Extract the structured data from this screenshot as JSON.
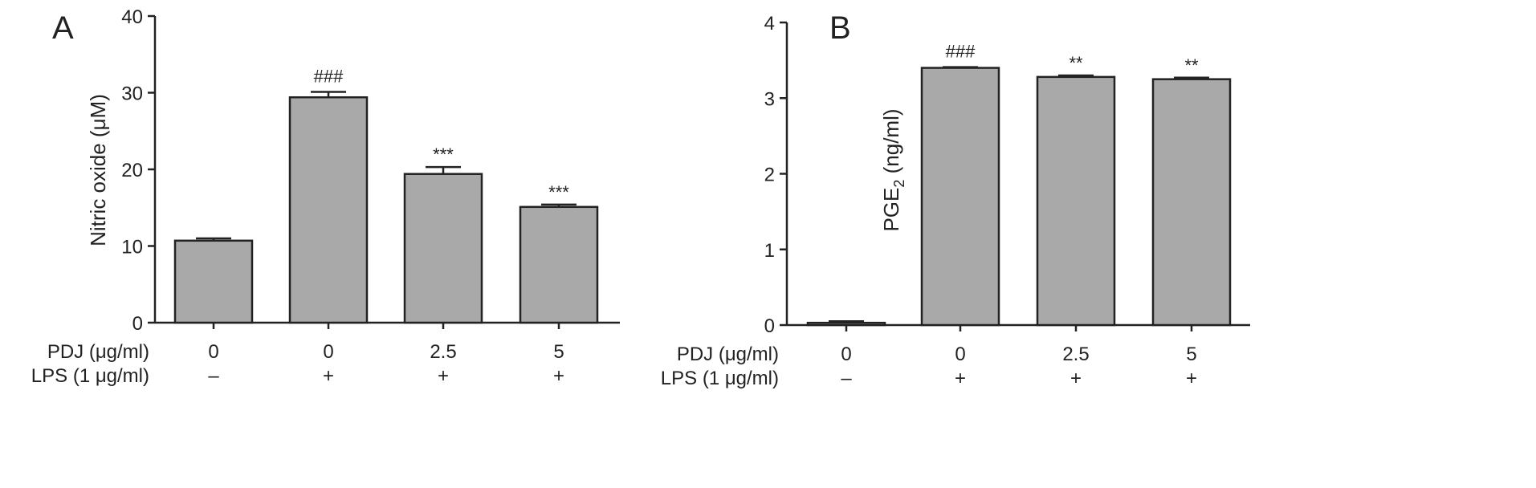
{
  "colors": {
    "bar": "#a9a9a9",
    "axis": "#222222",
    "text": "#222222"
  },
  "chart_data": [
    {
      "type": "bar",
      "panel_label": "A",
      "title": "",
      "xlabel": "",
      "ylabel": "Nitric oxide (μM)",
      "ylim": [
        0,
        40
      ],
      "yticks": [
        0,
        10,
        20,
        30,
        40
      ],
      "categories": [
        "0",
        "0",
        "2.5",
        "5"
      ],
      "values": [
        10.7,
        29.4,
        19.4,
        15.1
      ],
      "errors": [
        0.3,
        0.7,
        0.9,
        0.3
      ],
      "significance": [
        "",
        "###",
        "***",
        "***"
      ],
      "grid": false,
      "treatment_rows": [
        {
          "label": "PDJ (μg/ml)",
          "values": [
            "0",
            "0",
            "2.5",
            "5"
          ]
        },
        {
          "label": "LPS (1 μg/ml)",
          "values": [
            "–",
            "+",
            "+",
            "+"
          ]
        }
      ]
    },
    {
      "type": "bar",
      "panel_label": "B",
      "title": "",
      "xlabel": "",
      "ylabel": "PGE2 (ng/ml)",
      "ylabel_main": "PGE",
      "ylabel_sub": "2",
      "ylabel_tail": " (ng/ml)",
      "ylim": [
        0,
        4
      ],
      "yticks": [
        0,
        1,
        2,
        3,
        4
      ],
      "categories": [
        "0",
        "0",
        "2.5",
        "5"
      ],
      "values": [
        0.03,
        3.4,
        3.28,
        3.25
      ],
      "errors": [
        0.02,
        0.01,
        0.02,
        0.02
      ],
      "significance": [
        "",
        "###",
        "**",
        "**"
      ],
      "grid": false,
      "treatment_rows": [
        {
          "label": "PDJ (μg/ml)",
          "values": [
            "0",
            "0",
            "2.5",
            "5"
          ]
        },
        {
          "label": "LPS (1 μg/ml)",
          "values": [
            "–",
            "+",
            "+",
            "+"
          ]
        }
      ]
    }
  ]
}
